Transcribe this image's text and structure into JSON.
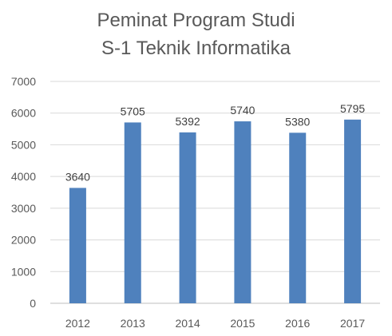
{
  "chart_data": {
    "type": "bar",
    "title_lines": [
      "Peminat Program Studi",
      "S-1 Teknik Informatika"
    ],
    "categories": [
      "2012",
      "2013",
      "2014",
      "2015",
      "2016",
      "2017"
    ],
    "values": [
      3640,
      5705,
      5392,
      5740,
      5380,
      5795
    ],
    "data_labels": [
      "3640",
      "5705",
      "5392",
      "5740",
      "5380",
      "5795"
    ],
    "ylim": [
      0,
      7000
    ],
    "yticks": [
      0,
      1000,
      2000,
      3000,
      4000,
      5000,
      6000,
      7000
    ],
    "xlabel": "",
    "ylabel": "",
    "grid": true,
    "bar_color": "#4F81BD",
    "grid_color": "#D9D9D9",
    "axis_color": "#BFBFBF"
  }
}
